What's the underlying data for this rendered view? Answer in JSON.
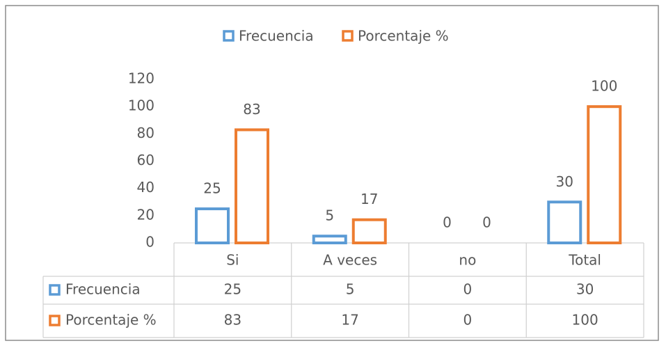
{
  "chart_data": {
    "type": "bar",
    "categories": [
      "Si",
      "A veces",
      "no",
      "Total"
    ],
    "series": [
      {
        "name": "Frecuencia",
        "color": "#5b9bd5",
        "values": [
          25,
          5,
          0,
          30
        ]
      },
      {
        "name": "Porcentaje %",
        "color": "#ed7d31",
        "values": [
          83,
          17,
          0,
          100
        ]
      }
    ],
    "ylim": [
      0,
      120
    ],
    "yticks": [
      0,
      20,
      40,
      60,
      80,
      100,
      120
    ],
    "grid": false,
    "legend": "top",
    "data_table": true
  }
}
